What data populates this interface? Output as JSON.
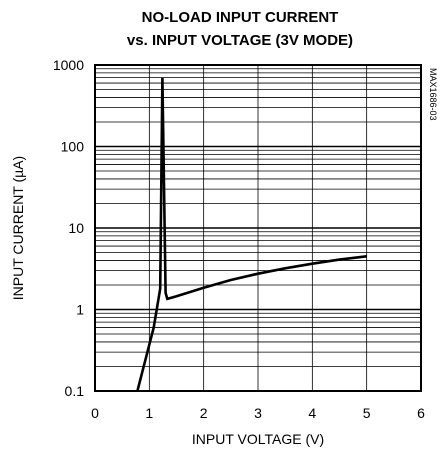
{
  "chart_data": {
    "type": "line",
    "title": [
      "NO-LOAD INPUT CURRENT",
      "vs. INPUT VOLTAGE (3V MODE)"
    ],
    "xlabel": "INPUT VOLTAGE (V)",
    "ylabel": "INPUT CURRENT (µA)",
    "xlim": [
      0,
      6
    ],
    "ylim": [
      0.1,
      1000
    ],
    "y_scale": "log",
    "x_ticks": [
      "0",
      "1",
      "2",
      "3",
      "4",
      "5",
      "6"
    ],
    "y_ticks": [
      "0.1",
      "1",
      "10",
      "100",
      "1000"
    ],
    "grid": true,
    "part_code": "MAX1686-03",
    "series": [
      {
        "x": [
          0.78,
          1.08,
          1.2,
          1.24,
          1.3,
          1.33,
          1.5,
          2.0,
          2.5,
          3.0,
          3.5,
          4.0,
          4.5,
          5.0
        ],
        "y": [
          0.1,
          0.6,
          1.8,
          700,
          1.6,
          1.35,
          1.45,
          1.85,
          2.3,
          2.75,
          3.2,
          3.65,
          4.1,
          4.5
        ]
      }
    ]
  }
}
